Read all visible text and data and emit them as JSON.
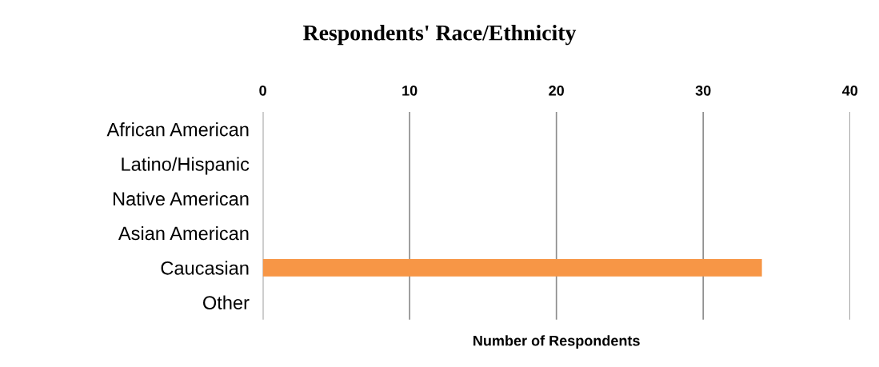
{
  "chart_data": {
    "type": "bar",
    "orientation": "horizontal",
    "title": "Respondents' Race/Ethnicity",
    "xlabel": "Number of Respondents",
    "categories": [
      "African American",
      "Latino/Hispanic",
      "Native American",
      "Asian American",
      "Caucasian",
      "Other"
    ],
    "values": [
      0,
      0,
      0,
      0,
      34,
      0
    ],
    "color": "#f79646",
    "xlim": [
      0,
      40
    ],
    "xticks": [
      0,
      10,
      20,
      30,
      40
    ],
    "grid": "x",
    "legend": false
  }
}
